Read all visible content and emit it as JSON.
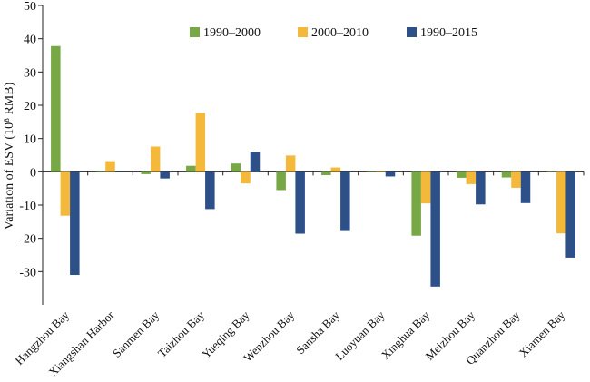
{
  "chart_data": {
    "type": "bar",
    "title": "",
    "xlabel": "",
    "ylabel": "Variation of ESV (10⁸ RMB)",
    "ylim": [
      -40,
      50
    ],
    "yticks": [
      50,
      40,
      30,
      20,
      10,
      0,
      -10,
      -20,
      -30
    ],
    "grid": false,
    "legend_position": "top",
    "categories": [
      "Hangzhou Bay",
      "Xiangshan Harbor",
      "Sanmen Bay",
      "Taizhou Bay",
      "Yueqing Bay",
      "Wenzhou Bay",
      "Sansha Bay",
      "Luoyuan Bay",
      "Xinghua Bay",
      "Meizhou Bay",
      "Quanzhou Bay",
      "Xiamen Bay"
    ],
    "series": [
      {
        "name": "1990–2000",
        "color": "#78a845",
        "values": [
          37.8,
          0.2,
          -0.7,
          1.8,
          2.5,
          -5.5,
          -1.0,
          0.2,
          -19.2,
          -1.8,
          -1.7,
          0.0
        ]
      },
      {
        "name": "2000–2010",
        "color": "#f4b93a",
        "values": [
          -13.2,
          3.2,
          7.6,
          17.7,
          -3.5,
          4.9,
          1.3,
          0.2,
          -9.5,
          -3.7,
          -4.8,
          -18.5
        ]
      },
      {
        "name": "1990–2015",
        "color": "#2e5089",
        "values": [
          -31.0,
          0.0,
          -2.0,
          -11.2,
          6.0,
          -18.6,
          -17.8,
          -1.4,
          -34.5,
          -9.8,
          -9.4,
          -25.8
        ]
      }
    ]
  }
}
